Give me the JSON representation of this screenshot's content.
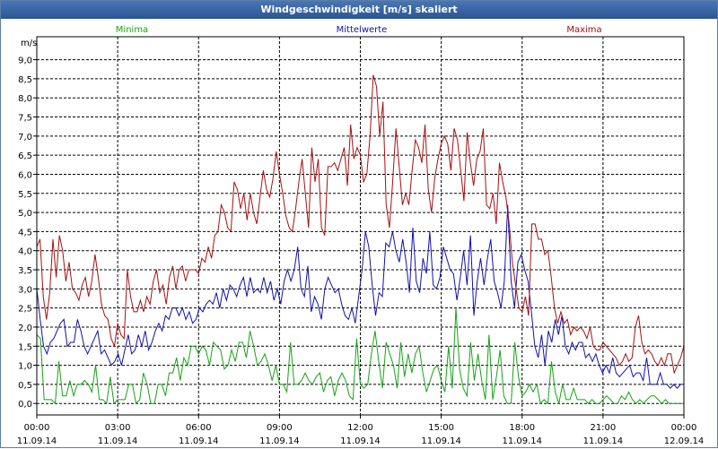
{
  "chart_data": {
    "type": "line",
    "title": "Windgeschwindigkeit [m/s] skaliert",
    "ylabel": "m/s",
    "ylim": [
      -0.3,
      9.6
    ],
    "y_ticks": [
      "9,0",
      "8,5",
      "8,0",
      "7,5",
      "7,0",
      "6,5",
      "6,0",
      "5,5",
      "5,0",
      "4,5",
      "4,0",
      "3,5",
      "3,0",
      "2,5",
      "2,0",
      "1,5",
      "1,0",
      "0,5",
      "0,0"
    ],
    "y_tick_values": [
      9.0,
      8.5,
      8.0,
      7.5,
      7.0,
      6.5,
      6.0,
      5.5,
      5.0,
      4.5,
      4.0,
      3.5,
      3.0,
      2.5,
      2.0,
      1.5,
      1.0,
      0.5,
      0.0
    ],
    "xlim": [
      0,
      24
    ],
    "x_ticks": [
      {
        "time": "00:00",
        "date": "11.09.14",
        "hours": 0
      },
      {
        "time": "03:00",
        "date": "11.09.14",
        "hours": 3
      },
      {
        "time": "06:00",
        "date": "11.09.14",
        "hours": 6
      },
      {
        "time": "09:00",
        "date": "11.09.14",
        "hours": 9
      },
      {
        "time": "12:00",
        "date": "11.09.14",
        "hours": 12
      },
      {
        "time": "15:00",
        "date": "11.09.14",
        "hours": 15
      },
      {
        "time": "18:00",
        "date": "11.09.14",
        "hours": 18
      },
      {
        "time": "21:00",
        "date": "11.09.14",
        "hours": 21
      },
      {
        "time": "00:00",
        "date": "12.09.14",
        "hours": 24
      }
    ],
    "grid": true,
    "x_step_hours": 0.25,
    "series": [
      {
        "name": "Minima",
        "color": "#13a413",
        "values": [
          1.8,
          1.7,
          0.1,
          0.1,
          0.1,
          0.0,
          1.1,
          0.2,
          0.2,
          0.6,
          0.2,
          0.5,
          0.5,
          0.6,
          0.5,
          0.3,
          1.0,
          0.1,
          0.1,
          0.0,
          0.7,
          0.0,
          0.1,
          0.1,
          0.1,
          0.5,
          0.5,
          0.0,
          0.1,
          0.8,
          0.5,
          0.0,
          0.0,
          0.5,
          0.5,
          0.2,
          0.8,
          0.8,
          1.2,
          0.6,
          1.2,
          1.0,
          1.5,
          1.5,
          1.3,
          1.5,
          1.4,
          1.0,
          1.6,
          1.5,
          1.4,
          0.9,
          1.0,
          1.4,
          1.1,
          1.6,
          1.6,
          1.2,
          1.9,
          1.5,
          1.0,
          1.1,
          1.3,
          1.0,
          0.6,
          1.0,
          0.5,
          0.5,
          0.3,
          1.6,
          0.5,
          0.5,
          0.6,
          0.8,
          0.6,
          0.5,
          0.7,
          0.8,
          0.3,
          0.6,
          0.7,
          0.2,
          0.6,
          0.8,
          0.6,
          0.2,
          0.1,
          1.7,
          0.5,
          0.4,
          0.5,
          1.3,
          1.9,
          1.1,
          0.4,
          1.6,
          1.3,
          1.0,
          0.4,
          1.6,
          0.7,
          1.3,
          0.8,
          1.3,
          1.5,
          0.8,
          0.3,
          0.6,
          0.9,
          1.0,
          0.6,
          0.3,
          1.5,
          0.4,
          2.5,
          0.9,
          0.4,
          0.2,
          1.6,
          0.6,
          1.3,
          0.6,
          0.1,
          1.8,
          0.1,
          0.7,
          1.4,
          0.2,
          0.0,
          0.0,
          1.6,
          0.7,
          0.2,
          0.3,
          0.5,
          0.3,
          0.5,
          0.0,
          0.1,
          0.0,
          1.1,
          0.3,
          0.0,
          0.5,
          0.1,
          0.1,
          0.4,
          0.1,
          0.1,
          0.1,
          0.0,
          0.1,
          0.0,
          0.0,
          0.1,
          0.2,
          0.1,
          0.0,
          0.0,
          0.2,
          0.1,
          0.3,
          0.1,
          0.0,
          0.1,
          0.0,
          0.1,
          0.2,
          0.2,
          0.1,
          0.0,
          0.1,
          0.0,
          0.0,
          0.0,
          0.0,
          0.0
        ]
      },
      {
        "name": "Mittelwerte",
        "color": "#1111aa",
        "values": [
          3.0,
          2.2,
          1.5,
          1.3,
          1.6,
          1.7,
          1.9,
          2.1,
          2.2,
          1.5,
          1.6,
          1.6,
          2.2,
          1.9,
          1.5,
          1.3,
          1.5,
          1.7,
          1.9,
          1.3,
          1.4,
          1.2,
          1.0,
          1.1,
          1.3,
          1.0,
          1.4,
          1.8,
          1.3,
          1.4,
          1.8,
          1.5,
          1.9,
          1.4,
          1.6,
          1.9,
          2.1,
          1.9,
          2.3,
          2.2,
          2.5,
          2.5,
          2.3,
          2.5,
          2.2,
          2.4,
          2.1,
          2.2,
          2.5,
          2.4,
          2.6,
          2.7,
          2.6,
          2.9,
          2.5,
          3.0,
          2.7,
          3.1,
          3.0,
          2.8,
          3.1,
          3.3,
          2.8,
          3.3,
          2.9,
          3.0,
          2.9,
          3.3,
          2.9,
          3.2,
          2.7,
          3.0,
          2.6,
          3.2,
          3.5,
          3.2,
          3.5,
          4.1,
          3.0,
          2.8,
          3.6,
          2.4,
          2.8,
          2.6,
          2.2,
          3.0,
          3.3,
          3.1,
          2.9,
          3.0,
          2.6,
          2.3,
          2.2,
          2.5,
          2.1,
          2.8,
          3.5,
          4.5,
          4.1,
          3.1,
          2.3,
          2.9,
          2.8,
          4.2,
          4.1,
          4.5,
          4.0,
          3.7,
          4.3,
          3.7,
          2.9,
          4.6,
          3.2,
          2.9,
          3.8,
          3.4,
          4.5,
          3.1,
          3.0,
          3.3,
          4.1,
          3.8,
          3.5,
          3.4,
          2.7,
          3.3,
          4.0,
          3.1,
          4.4,
          2.3,
          3.2,
          3.8,
          3.1,
          3.8,
          4.3,
          3.2,
          2.9,
          2.5,
          3.2,
          5.2,
          3.2,
          2.5,
          3.7,
          3.9,
          3.5,
          3.2,
          2.4,
          1.5,
          1.2,
          1.8,
          1.0,
          1.9,
          1.6,
          2.2,
          1.8,
          2.3,
          1.5,
          1.3,
          1.6,
          1.4,
          1.6,
          1.6,
          1.2,
          1.3,
          1.1,
          1.3,
          1.0,
          0.8,
          1.0,
          0.8,
          1.2,
          0.8,
          0.7,
          0.8,
          0.9,
          1.0,
          0.7,
          0.8,
          0.8,
          0.6,
          1.2,
          0.5,
          0.5,
          0.5,
          0.8,
          0.5,
          0.5,
          0.4,
          0.5,
          0.4,
          0.5,
          0.5
        ]
      },
      {
        "name": "Maxima",
        "color": "#a80f0f",
        "values": [
          4.1,
          4.3,
          2.8,
          2.2,
          2.9,
          4.3,
          3.3,
          4.4,
          4.0,
          3.2,
          3.7,
          3.0,
          2.9,
          2.7,
          3.1,
          3.3,
          2.8,
          3.2,
          3.9,
          3.3,
          2.6,
          2.3,
          2.2,
          1.7,
          1.5,
          2.1,
          1.8,
          1.7,
          3.5,
          2.8,
          2.4,
          2.4,
          2.7,
          2.4,
          2.8,
          2.6,
          3.2,
          3.5,
          2.9,
          3.1,
          2.6,
          3.3,
          3.6,
          3.0,
          3.5,
          3.6,
          3.2,
          3.5,
          3.5,
          3.5,
          3.4,
          3.8,
          3.7,
          4.1,
          3.8,
          4.4,
          4.5,
          5.2,
          5.0,
          4.6,
          4.5,
          5.8,
          5.6,
          5.1,
          5.5,
          4.8,
          5.5,
          5.0,
          4.7,
          5.4,
          6.1,
          5.6,
          5.4,
          5.9,
          6.6,
          6.0,
          5.5,
          4.9,
          4.6,
          4.5,
          5.1,
          5.8,
          6.4,
          5.5,
          4.6,
          6.7,
          5.8,
          6.4,
          4.6,
          4.4,
          6.2,
          6.2,
          6.3,
          6.1,
          6.4,
          6.7,
          5.7,
          7.3,
          6.4,
          6.7,
          6.5,
          5.8,
          6.0,
          7.0,
          8.6,
          8.3,
          7.0,
          7.9,
          5.2,
          4.6,
          5.8,
          7.2,
          6.2,
          5.2,
          5.5,
          5.2,
          6.1,
          6.9,
          6.7,
          6.3,
          7.3,
          5.6,
          5.0,
          5.9,
          6.4,
          6.8,
          7.0,
          6.8,
          6.1,
          7.2,
          6.9,
          6.1,
          5.3,
          7.1,
          6.3,
          5.7,
          6.4,
          6.6,
          7.2,
          5.2,
          5.1,
          5.5,
          4.7,
          6.3,
          5.8,
          5.4,
          4.7,
          3.7,
          3.1,
          2.5,
          2.4,
          2.8,
          2.3,
          4.7,
          4.7,
          4.3,
          4.3,
          3.9,
          4.0,
          3.3,
          2.5,
          2.1,
          2.4,
          2.1,
          2.2,
          1.8,
          2.0,
          1.9,
          2.0,
          1.9,
          1.7,
          2.0,
          1.5,
          1.4,
          1.4,
          1.6,
          1.5,
          1.4,
          1.3,
          1.2,
          1.0,
          1.1,
          1.3,
          1.1,
          1.2,
          2.0,
          2.3,
          1.6,
          1.3,
          1.4,
          1.3,
          1.1,
          1.0,
          1.2,
          1.0,
          1.3,
          1.3,
          0.8,
          1.0,
          1.2,
          1.5
        ]
      }
    ]
  }
}
